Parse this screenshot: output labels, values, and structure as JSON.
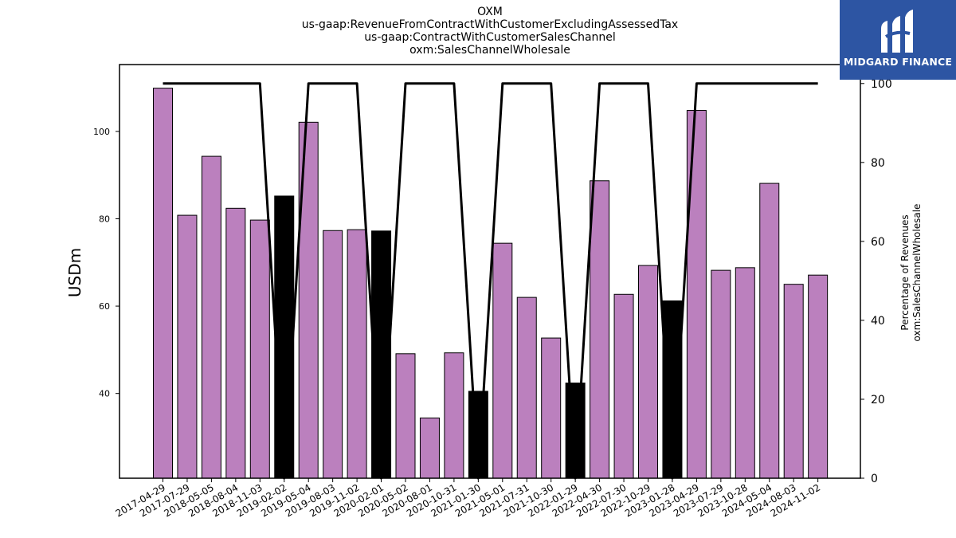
{
  "title_lines": [
    "OXM",
    "us-gaap:RevenueFromContractWithCustomerExcludingAssessedTax",
    "us-gaap:ContractWithCustomerSalesChannel",
    "oxm:SalesChannelWholesale"
  ],
  "brand": {
    "name": "MIDGARD FINANCE",
    "color": "#2d55a3"
  },
  "chart_data": {
    "type": "bar",
    "categories": [
      "2017-04-29",
      "2017-07-29",
      "2018-05-05",
      "2018-08-04",
      "2018-11-03",
      "2019-02-02",
      "2019-05-04",
      "2019-08-03",
      "2019-11-02",
      "2020-02-01",
      "2020-05-02",
      "2020-08-01",
      "2020-10-31",
      "2021-01-30",
      "2021-05-01",
      "2021-07-31",
      "2021-10-30",
      "2022-01-29",
      "2022-04-30",
      "2022-07-30",
      "2022-10-29",
      "2023-01-28",
      "2023-04-29",
      "2023-07-29",
      "2023-10-28",
      "2024-05-04",
      "2024-08-03",
      "2024-11-02"
    ],
    "series": [
      {
        "axis": "left",
        "values": [
          109.9,
          80.8,
          94.3,
          82.4,
          79.7,
          85.2,
          102.1,
          77.3,
          77.5,
          77.2,
          49.1,
          34.4,
          49.3,
          40.5,
          74.4,
          62.0,
          52.7,
          42.4,
          88.7,
          62.7,
          69.3,
          61.2,
          104.8,
          68.2,
          68.8,
          88.1,
          65.0,
          67.1
        ],
        "colors": [
          "#bb80be",
          "#bb80be",
          "#bb80be",
          "#bb80be",
          "#bb80be",
          "#000000",
          "#bb80be",
          "#bb80be",
          "#bb80be",
          "#000000",
          "#bb80be",
          "#bb80be",
          "#bb80be",
          "#000000",
          "#bb80be",
          "#bb80be",
          "#bb80be",
          "#000000",
          "#bb80be",
          "#bb80be",
          "#bb80be",
          "#000000",
          "#bb80be",
          "#bb80be",
          "#bb80be",
          "#bb80be",
          "#bb80be",
          "#bb80be"
        ]
      },
      {
        "axis": "right",
        "type": "line",
        "color": "#000000",
        "values": [
          100,
          100,
          100,
          100,
          100,
          0,
          100,
          100,
          100,
          0,
          100,
          100,
          100,
          0,
          100,
          100,
          100,
          0,
          100,
          100,
          100,
          0,
          100,
          100,
          100,
          100,
          100,
          100
        ]
      }
    ],
    "ylabel": "USDm",
    "y2label": [
      "Percentage of Revenues",
      "oxm:SalesChannelWholesale"
    ],
    "ylim": [
      20.6,
      115.3
    ],
    "y2lim": [
      0,
      104.8
    ],
    "yticks": [
      40,
      60,
      80,
      100
    ],
    "y2ticks": [
      0,
      20,
      40,
      60,
      80,
      100
    ],
    "grid": false
  }
}
